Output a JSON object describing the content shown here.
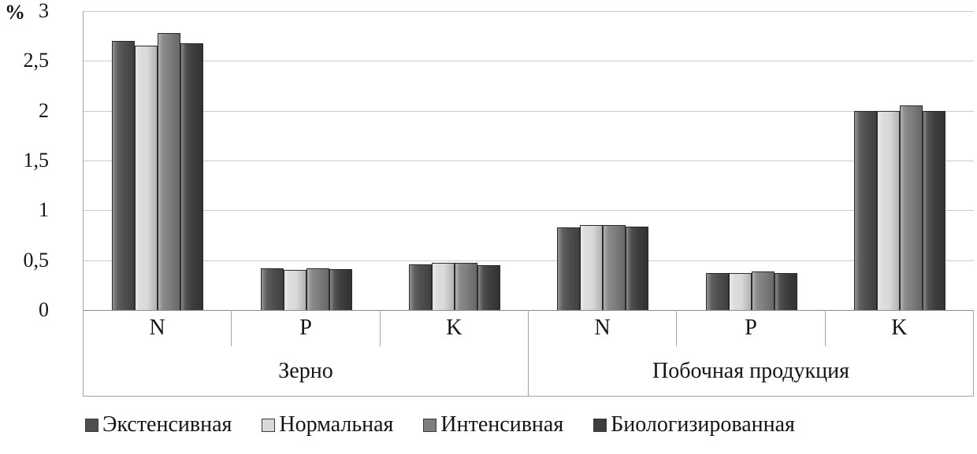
{
  "chart_data": {
    "type": "bar",
    "title": "",
    "ylabel": "%",
    "xlabel": "",
    "ylim": [
      0,
      3
    ],
    "yticks": [
      0,
      0.5,
      1,
      1.5,
      2,
      2.5,
      3
    ],
    "ytick_labels": [
      "0",
      "0,5",
      "1",
      "1,5",
      "2",
      "2,5",
      "3"
    ],
    "grid": true,
    "legend_position": "bottom",
    "groups": [
      {
        "label": "Зерно",
        "categories": [
          "N",
          "P",
          "K"
        ]
      },
      {
        "label": "Побочная продукция",
        "categories": [
          "N",
          "P",
          "K"
        ]
      }
    ],
    "categories": [
      "N",
      "P",
      "K",
      "N",
      "P",
      "K"
    ],
    "series": [
      {
        "name": "Экстенсивная",
        "color": "#4e4e4e",
        "values": [
          2.7,
          0.42,
          0.46,
          0.83,
          0.37,
          2.0
        ]
      },
      {
        "name": "Нормальная",
        "color": "#d9d9d9",
        "values": [
          2.65,
          0.4,
          0.47,
          0.85,
          0.37,
          2.0
        ]
      },
      {
        "name": "Интенсивная",
        "color": "#7d7d7d",
        "values": [
          2.78,
          0.42,
          0.47,
          0.85,
          0.39,
          2.05
        ]
      },
      {
        "name": "Биологизированная",
        "color": "#3d3d3d",
        "values": [
          2.68,
          0.41,
          0.45,
          0.84,
          0.37,
          2.0
        ]
      }
    ]
  }
}
